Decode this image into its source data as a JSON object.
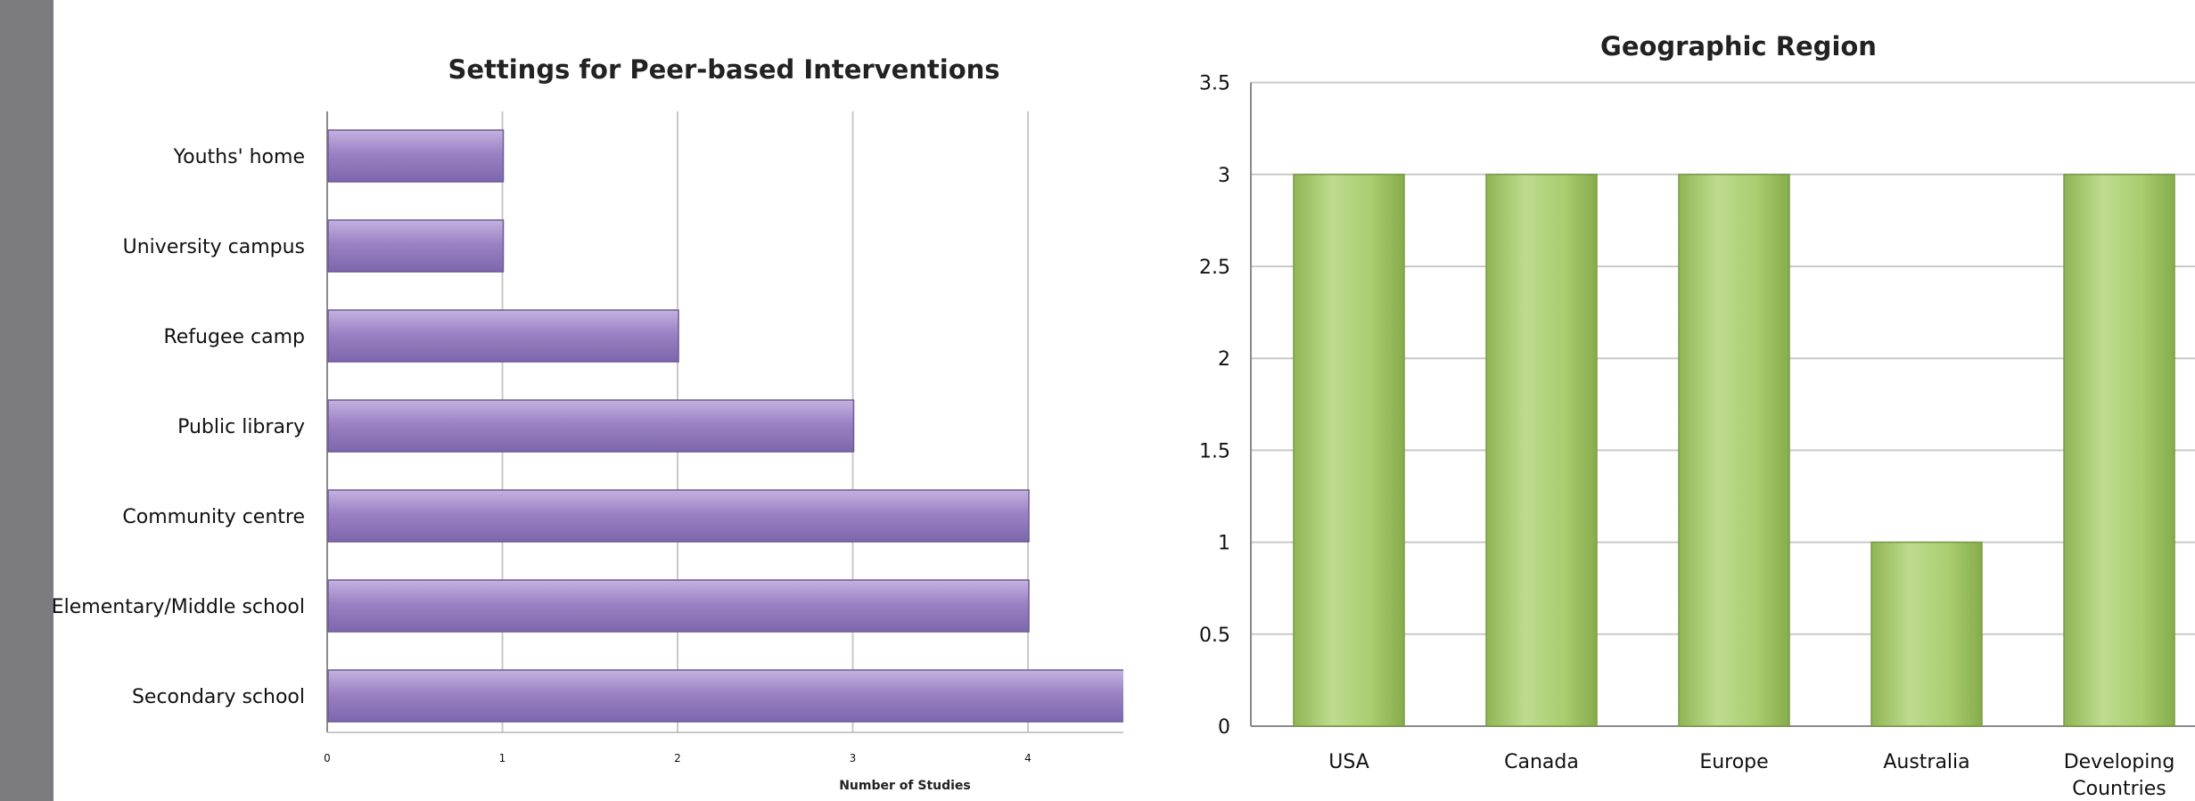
{
  "chart_data": [
    {
      "type": "bar",
      "orientation": "horizontal",
      "title": "Settings for Peer-based Interventions",
      "xlabel": "Number of Studies",
      "ylabel": "",
      "categories": [
        "Youths' home",
        "University campus",
        "Refugee camp",
        "Public library",
        "Community centre",
        "Elementary/Middle school",
        "Secondary school"
      ],
      "values": [
        1,
        1,
        2,
        3,
        4,
        4,
        5
      ],
      "xticks": [
        "0",
        "1",
        "2",
        "3",
        "4"
      ],
      "xlim": [
        0,
        5
      ],
      "grid": "vertical",
      "legend": "none",
      "bar_color": "#9b82c4"
    },
    {
      "type": "bar",
      "orientation": "vertical",
      "title": "Geographic Region",
      "xlabel": "",
      "ylabel": "",
      "categories": [
        "USA",
        "Canada",
        "Europe",
        "Australia",
        "Developing Countries"
      ],
      "values": [
        3,
        3,
        3,
        1,
        3
      ],
      "yticks": [
        "0",
        "0.5",
        "1",
        "1.5",
        "2",
        "2.5",
        "3",
        "3.5"
      ],
      "ylim": [
        0,
        3.5
      ],
      "grid": "horizontal",
      "legend": "none",
      "bar_color": "#a8cc6c"
    }
  ]
}
